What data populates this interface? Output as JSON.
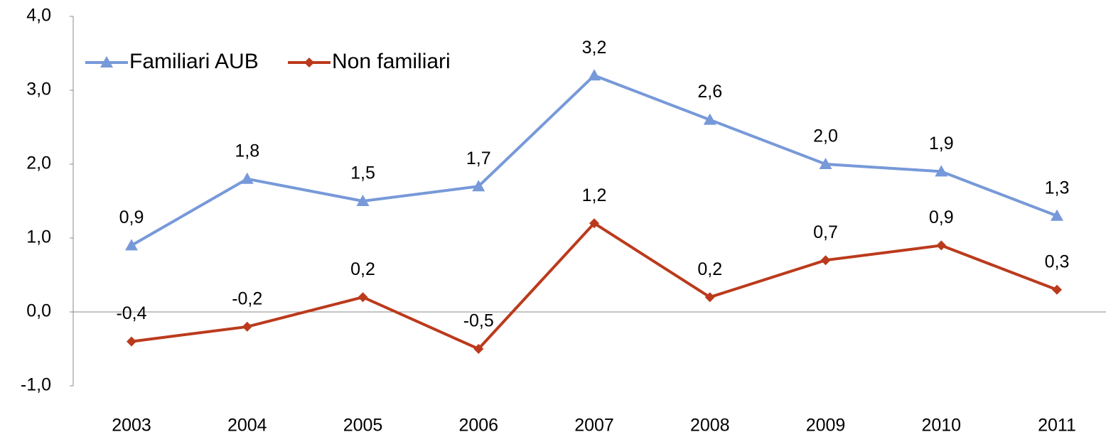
{
  "chart_data": {
    "type": "line",
    "categories": [
      "2003",
      "2004",
      "2005",
      "2006",
      "2007",
      "2008",
      "2009",
      "2010",
      "2011"
    ],
    "series": [
      {
        "name": "Familiari AUB",
        "color": "#7799d9",
        "marker": "triangle",
        "values": [
          0.9,
          1.8,
          1.5,
          1.7,
          3.2,
          2.6,
          2.0,
          1.9,
          1.3
        ],
        "value_labels": [
          "0,9",
          "1,8",
          "1,5",
          "1,7",
          "3,2",
          "2,6",
          "2,0",
          "1,9",
          "1,3"
        ]
      },
      {
        "name": "Non familiari",
        "color": "#bb3a1c",
        "marker": "diamond",
        "values": [
          -0.4,
          -0.2,
          0.2,
          -0.5,
          1.2,
          0.2,
          0.7,
          0.9,
          0.3
        ],
        "value_labels": [
          "-0,4",
          "-0,2",
          "0,2",
          "-0,5",
          "1,2",
          "0,2",
          "0,7",
          "0,9",
          "0,3"
        ]
      }
    ],
    "ylim": [
      -1,
      4
    ],
    "yticks": [
      {
        "value": -1,
        "label": "-1,0"
      },
      {
        "value": 0,
        "label": "0,0"
      },
      {
        "value": 1,
        "label": "1,0"
      },
      {
        "value": 2,
        "label": "2,0"
      },
      {
        "value": 3,
        "label": "3,0"
      },
      {
        "value": 4,
        "label": "4,0"
      }
    ],
    "grid": false,
    "legend": "top-left"
  }
}
